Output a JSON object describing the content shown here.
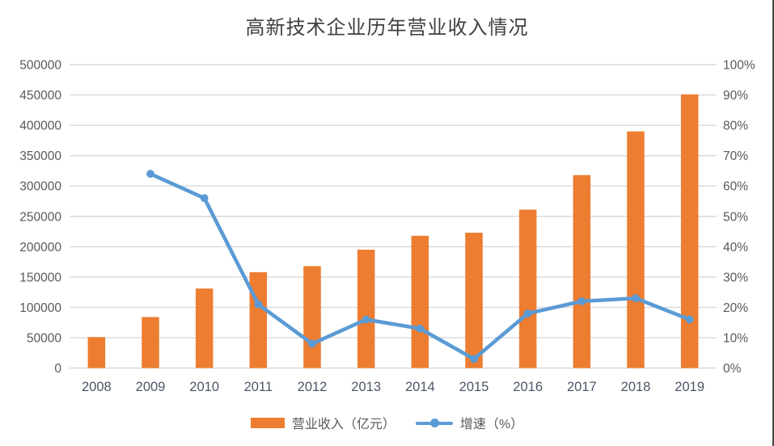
{
  "page": {
    "background": "#ffffff",
    "frame_border_color": "#474747"
  },
  "chart_data": {
    "type": "combo_bar_line",
    "title": "高新技术企业历年营业收入情况",
    "categories": [
      "2008",
      "2009",
      "2010",
      "2011",
      "2012",
      "2013",
      "2014",
      "2015",
      "2016",
      "2017",
      "2018",
      "2019"
    ],
    "series": [
      {
        "name": "营业收入（亿元）",
        "type": "bar",
        "axis": "left",
        "color": "#ED7D31",
        "values": [
          51000,
          84000,
          131000,
          158000,
          168000,
          195000,
          218000,
          223000,
          261000,
          318000,
          390000,
          451000
        ]
      },
      {
        "name": "增速（%）",
        "type": "line",
        "axis": "right",
        "color": "#5B9BD5",
        "values": [
          null,
          64,
          56,
          21,
          8,
          16,
          13,
          3,
          18,
          22,
          23,
          16
        ]
      }
    ],
    "left_axis": {
      "min": 0,
      "max": 500000,
      "step": 50000,
      "tick_labels": [
        "0",
        "50000",
        "100000",
        "150000",
        "200000",
        "250000",
        "300000",
        "350000",
        "400000",
        "450000",
        "500000"
      ]
    },
    "right_axis": {
      "min": 0,
      "max": 100,
      "step": 10,
      "tick_labels": [
        "0%",
        "10%",
        "20%",
        "30%",
        "40%",
        "50%",
        "60%",
        "70%",
        "80%",
        "90%",
        "100%"
      ]
    },
    "grid": true,
    "gridline_color": "#D9D9D9",
    "axis_text_color": "#595959",
    "title_color": "#3f3f3f",
    "legend_position": "bottom"
  }
}
